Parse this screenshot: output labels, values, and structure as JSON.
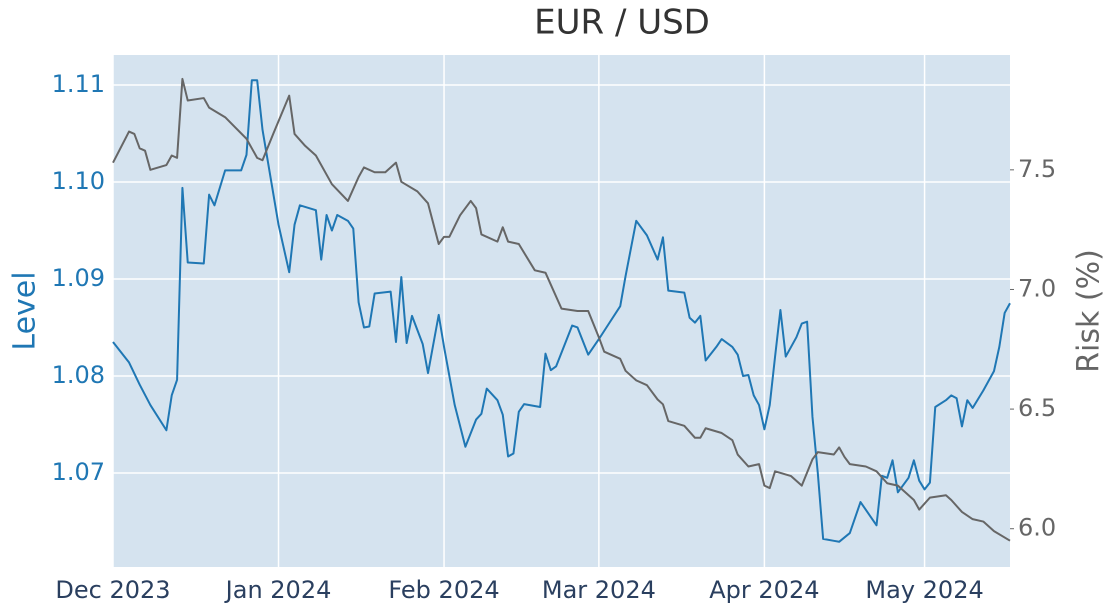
{
  "chart_data": {
    "type": "line",
    "title": "EUR / USD",
    "ylabel": "Level",
    "y2label": "Risk (%)",
    "xlim": [
      0,
      168
    ],
    "xticks": [
      {
        "value": 0,
        "label": "Dec 2023"
      },
      {
        "value": 31,
        "label": "Jan 2024"
      },
      {
        "value": 62,
        "label": "Feb 2024"
      },
      {
        "value": 91,
        "label": "Mar 2024"
      },
      {
        "value": 122,
        "label": "Apr 2024"
      },
      {
        "value": 152,
        "label": "May 2024"
      }
    ],
    "ylim": [
      1.0603,
      1.1131
    ],
    "yticks": [
      1.07,
      1.08,
      1.09,
      {
        "value": 1.1,
        "label": "1.10"
      },
      1.11
    ],
    "y2lim": [
      5.84,
      7.98
    ],
    "y2ticks": [
      {
        "value": 6.0,
        "label": "6.0"
      },
      6.5,
      {
        "value": 7.0,
        "label": "7.0"
      },
      7.5
    ],
    "grid": true,
    "ycolor": "#1f77b4",
    "y2color": "#666666",
    "background": "#d5e3ef",
    "series": [
      {
        "color": "#1f77b4",
        "axis": "y",
        "x": [
          0,
          3,
          5,
          7,
          10,
          11,
          12,
          13,
          14,
          17,
          18,
          19,
          21,
          24,
          25,
          26,
          27,
          28,
          31,
          33,
          34,
          35,
          38,
          39,
          40,
          41,
          42,
          44,
          45,
          46,
          47,
          48,
          49,
          52,
          53,
          54,
          55,
          56,
          58,
          59,
          61,
          62,
          64,
          66,
          68,
          69,
          70,
          72,
          73,
          74,
          75,
          76,
          77,
          80,
          81,
          82,
          83,
          86,
          87,
          89,
          91,
          93,
          95,
          96,
          98,
          100,
          102,
          103,
          104,
          107,
          108,
          109,
          110,
          111,
          113,
          114,
          116,
          117,
          118,
          119,
          120,
          121,
          122,
          123,
          124,
          125,
          126,
          128,
          129,
          130,
          131,
          132,
          133,
          135,
          136,
          138,
          140,
          143,
          144,
          145,
          146,
          147,
          149,
          150,
          151,
          152,
          153,
          154,
          156,
          157,
          158,
          159,
          160,
          161,
          163,
          165,
          166,
          167,
          168
        ],
        "values": [
          1.0835,
          1.0814,
          1.0791,
          1.077,
          1.0744,
          1.078,
          1.0796,
          1.0994,
          1.0917,
          1.0916,
          1.0987,
          1.0976,
          1.1012,
          1.1012,
          1.1028,
          1.1105,
          1.1105,
          1.1054,
          1.0956,
          1.0907,
          1.0956,
          1.0976,
          1.0971,
          1.092,
          1.0966,
          1.095,
          1.0966,
          1.096,
          1.0952,
          1.0876,
          1.085,
          1.0851,
          1.0885,
          1.0887,
          1.0835,
          1.0902,
          1.0834,
          1.0862,
          1.0833,
          1.0803,
          1.0863,
          1.083,
          1.077,
          1.0727,
          1.0755,
          1.0761,
          1.0787,
          1.0775,
          1.076,
          1.0717,
          1.072,
          1.0763,
          1.0771,
          1.0768,
          1.0823,
          1.0806,
          1.081,
          1.0852,
          1.085,
          1.0822,
          1.0838,
          1.0855,
          1.0872,
          1.0903,
          1.096,
          1.0945,
          1.092,
          1.0943,
          1.0888,
          1.0886,
          1.086,
          1.0855,
          1.0862,
          1.0816,
          1.083,
          1.0838,
          1.083,
          1.0822,
          1.08,
          1.0801,
          1.078,
          1.077,
          1.0745,
          1.077,
          1.082,
          1.0868,
          1.082,
          1.084,
          1.0854,
          1.0856,
          1.0758,
          1.07,
          1.0632,
          1.063,
          1.0629,
          1.0638,
          1.067,
          1.0646,
          1.0697,
          1.0695,
          1.0713,
          1.068,
          1.0695,
          1.0713,
          1.0692,
          1.0683,
          1.069,
          1.0768,
          1.0775,
          1.078,
          1.0777,
          1.0748,
          1.0775,
          1.0767,
          1.0785,
          1.0805,
          1.083,
          1.0865,
          1.0875
        ]
      },
      {
        "color": "#666666",
        "axis": "y2",
        "x": [
          0,
          3,
          4,
          5,
          6,
          7,
          10,
          11,
          12,
          13,
          14,
          17,
          18,
          21,
          25,
          27,
          28,
          30,
          33,
          34,
          36,
          38,
          41,
          44,
          46,
          47,
          49,
          51,
          53,
          54,
          57,
          59,
          61,
          62,
          63,
          65,
          67,
          68,
          69,
          72,
          73,
          74,
          76,
          79,
          81,
          82,
          84,
          87,
          89,
          91,
          92,
          95,
          96,
          98,
          100,
          102,
          103,
          104,
          107,
          109,
          110,
          111,
          114,
          116,
          117,
          119,
          121,
          122,
          123,
          124,
          127,
          129,
          131,
          132,
          135,
          136,
          137,
          138,
          141,
          143,
          145,
          147,
          150,
          151,
          153,
          156,
          157,
          159,
          161,
          163,
          165,
          168
        ],
        "values": [
          7.53,
          7.66,
          7.65,
          7.59,
          7.58,
          7.5,
          7.52,
          7.56,
          7.55,
          7.88,
          7.79,
          7.8,
          7.76,
          7.72,
          7.63,
          7.55,
          7.54,
          7.65,
          7.81,
          7.65,
          7.6,
          7.56,
          7.44,
          7.37,
          7.47,
          7.51,
          7.49,
          7.49,
          7.53,
          7.45,
          7.41,
          7.36,
          7.19,
          7.22,
          7.22,
          7.31,
          7.37,
          7.34,
          7.23,
          7.2,
          7.26,
          7.2,
          7.19,
          7.08,
          7.07,
          7.02,
          6.92,
          6.91,
          6.91,
          6.8,
          6.74,
          6.71,
          6.66,
          6.62,
          6.6,
          6.54,
          6.52,
          6.45,
          6.43,
          6.38,
          6.38,
          6.42,
          6.4,
          6.37,
          6.31,
          6.26,
          6.27,
          6.18,
          6.17,
          6.24,
          6.22,
          6.18,
          6.29,
          6.32,
          6.31,
          6.34,
          6.3,
          6.27,
          6.26,
          6.24,
          6.19,
          6.18,
          6.12,
          6.08,
          6.13,
          6.14,
          6.12,
          6.07,
          6.04,
          6.03,
          5.99,
          5.95
        ]
      }
    ]
  }
}
